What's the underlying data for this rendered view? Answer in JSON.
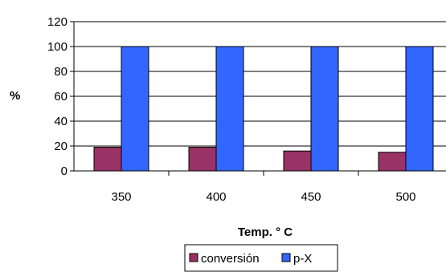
{
  "chart_data": {
    "type": "bar",
    "categories": [
      "350",
      "400",
      "450",
      "500"
    ],
    "series": [
      {
        "name": "conversión",
        "values": [
          19,
          19,
          16,
          15
        ],
        "color": "#993366"
      },
      {
        "name": "p-X",
        "values": [
          100,
          100,
          100,
          100
        ],
        "color": "#3366ff"
      }
    ],
    "xlabel": "Temp. ° C",
    "ylabel": "%",
    "ylim": [
      0,
      120
    ],
    "yticks": [
      "0",
      "20",
      "40",
      "60",
      "80",
      "100",
      "120"
    ],
    "grid": true,
    "legend_position": "bottom"
  }
}
